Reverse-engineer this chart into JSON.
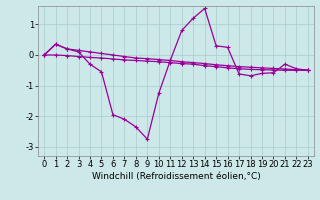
{
  "xlabel": "Windchill (Refroidissement éolien,°C)",
  "xlim": [
    -0.5,
    23.5
  ],
  "ylim": [
    -3.3,
    1.6
  ],
  "background_color": "#cce8e8",
  "grid_color": "#aacccc",
  "line_color": "#990099",
  "line1_x": [
    0,
    1,
    2,
    3,
    4,
    5,
    6,
    7,
    8,
    9,
    10,
    11,
    12,
    13,
    14,
    15,
    16,
    17,
    18,
    19,
    20,
    21,
    22,
    23
  ],
  "line1_y": [
    0.0,
    0.35,
    0.2,
    0.15,
    0.1,
    0.05,
    0.0,
    -0.05,
    -0.1,
    -0.12,
    -0.15,
    -0.18,
    -0.22,
    -0.25,
    -0.28,
    -0.32,
    -0.35,
    -0.38,
    -0.4,
    -0.42,
    -0.44,
    -0.46,
    -0.48,
    -0.5
  ],
  "line2_x": [
    0,
    1,
    2,
    3,
    4,
    5,
    6,
    7,
    8,
    9,
    10,
    11,
    12,
    13,
    14,
    15,
    16,
    17,
    18,
    19,
    20,
    21,
    22,
    23
  ],
  "line2_y": [
    0.0,
    0.0,
    -0.02,
    -0.05,
    -0.08,
    -0.1,
    -0.13,
    -0.16,
    -0.18,
    -0.2,
    -0.22,
    -0.25,
    -0.28,
    -0.3,
    -0.35,
    -0.38,
    -0.42,
    -0.45,
    -0.47,
    -0.48,
    -0.49,
    -0.5,
    -0.5,
    -0.5
  ],
  "line3_x": [
    0,
    1,
    2,
    3,
    4,
    5,
    6,
    7,
    8,
    9,
    10,
    11,
    12,
    13,
    14,
    15,
    16,
    17,
    18,
    19,
    20,
    21,
    22,
    23
  ],
  "line3_y": [
    0.0,
    0.35,
    0.2,
    0.1,
    -0.3,
    -0.55,
    -1.95,
    -2.1,
    -2.35,
    -2.75,
    -1.25,
    -0.18,
    0.8,
    1.2,
    1.52,
    0.3,
    0.25,
    -0.62,
    -0.68,
    -0.6,
    -0.58,
    -0.3,
    -0.45,
    -0.5
  ],
  "xtick_labels": [
    "0",
    "1",
    "2",
    "3",
    "4",
    "5",
    "6",
    "7",
    "8",
    "9",
    "10",
    "11",
    "12",
    "13",
    "14",
    "15",
    "16",
    "17",
    "18",
    "19",
    "20",
    "21",
    "22",
    "23"
  ],
  "ytick_values": [
    -3,
    -2,
    -1,
    0,
    1
  ],
  "fontsize_xlabel": 6.5,
  "fontsize_ticks": 6.0,
  "marker": "+",
  "marker_size": 3,
  "linewidth": 0.9
}
